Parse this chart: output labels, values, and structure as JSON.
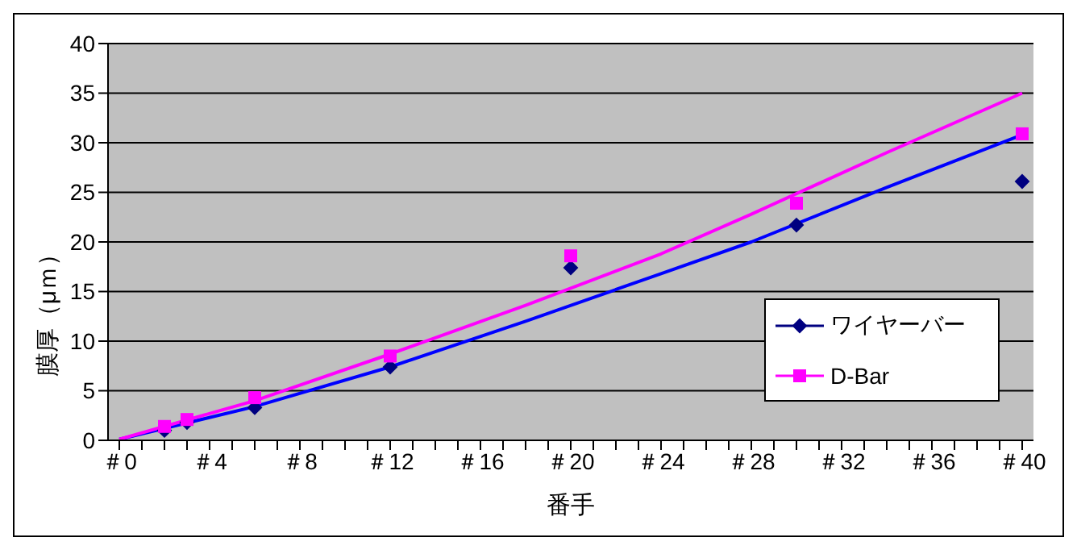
{
  "chart_data": {
    "type": "scatter",
    "xlabel": "番手",
    "ylabel": "膜厚（μｍ）",
    "categories": [
      "＃0",
      null,
      null,
      null,
      "＃4",
      null,
      null,
      null,
      "＃8",
      null,
      null,
      null,
      "＃12",
      null,
      null,
      null,
      "＃16",
      null,
      null,
      null,
      "＃20",
      null,
      null,
      null,
      "＃24",
      null,
      null,
      null,
      "＃28",
      null,
      null,
      null,
      "＃32",
      null,
      null,
      null,
      "＃36",
      null,
      null,
      null,
      "＃40"
    ],
    "series": [
      {
        "name": "ワイヤーバー",
        "type": "scatter",
        "color": "#000080",
        "marker": "diamond",
        "values": [
          null,
          null,
          1.0,
          1.8,
          null,
          null,
          3.3,
          null,
          null,
          null,
          null,
          null,
          7.4,
          null,
          null,
          null,
          null,
          null,
          null,
          null,
          17.4,
          null,
          null,
          null,
          null,
          null,
          null,
          null,
          null,
          null,
          21.7,
          null,
          null,
          null,
          null,
          null,
          null,
          null,
          null,
          null,
          26.1
        ]
      },
      {
        "name": "D-Bar",
        "type": "scatter",
        "color": "#ff00ff",
        "marker": "square",
        "values": [
          null,
          null,
          1.4,
          2.1,
          null,
          null,
          4.3,
          null,
          null,
          null,
          null,
          null,
          8.5,
          null,
          null,
          null,
          null,
          null,
          null,
          null,
          18.6,
          null,
          null,
          null,
          null,
          null,
          null,
          null,
          null,
          null,
          23.9,
          null,
          null,
          null,
          null,
          null,
          null,
          null,
          null,
          null,
          30.9
        ]
      },
      {
        "type": "line",
        "color": "#0000ff",
        "marker": "none",
        "values": [
          0.1,
          null,
          null,
          null,
          null,
          null,
          3.4,
          null,
          null,
          null,
          null,
          null,
          7.4,
          null,
          null,
          null,
          null,
          null,
          12.0,
          null,
          null,
          null,
          null,
          null,
          16.8,
          null,
          null,
          null,
          20.0,
          null,
          null,
          null,
          null,
          null,
          25.5,
          null,
          null,
          null,
          null,
          null,
          30.8
        ]
      },
      {
        "type": "line",
        "color": "#ff00ff",
        "marker": "none",
        "values": [
          0.1,
          null,
          null,
          null,
          null,
          null,
          4.0,
          null,
          null,
          null,
          null,
          null,
          8.7,
          null,
          null,
          null,
          null,
          null,
          13.6,
          null,
          null,
          null,
          null,
          null,
          18.8,
          null,
          null,
          null,
          22.8,
          null,
          null,
          null,
          null,
          null,
          29.0,
          null,
          null,
          null,
          null,
          null,
          35.0
        ]
      }
    ],
    "ylim": [
      0,
      40
    ],
    "yticks": [
      0,
      5,
      10,
      15,
      20,
      25,
      30,
      35,
      40
    ],
    "grid": "y",
    "legend": "right"
  }
}
